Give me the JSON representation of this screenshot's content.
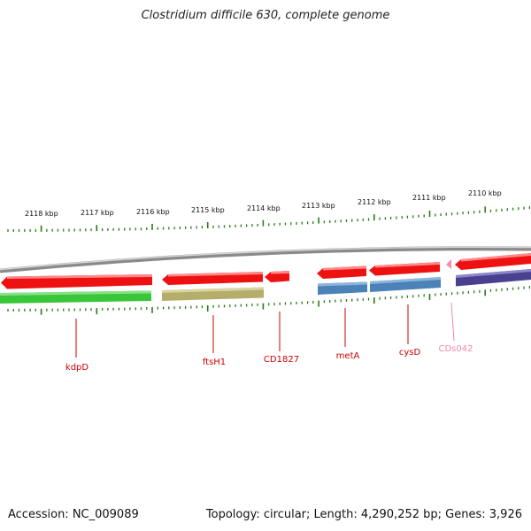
{
  "title": "Clostridium difficile 630, complete genome",
  "footer": {
    "accession": "Accession: NC_009089",
    "summary": "Topology: circular; Length: 4,290,252 bp; Genes: 3,926"
  },
  "ruler": {
    "labels": [
      "2118 kbp",
      "2117 kbp",
      "2116 kbp",
      "2115 kbp",
      "2114 kbp",
      "2113 kbp",
      "2112 kbp",
      "2111 kbp",
      "2110 kbp"
    ],
    "tick_color": "#2a7a18"
  },
  "genes": [
    {
      "label": "kdpD",
      "color": "#cc0000",
      "strand_top": "#ee1111",
      "strand_bottom": "#39c639"
    },
    {
      "label": "ftsH1",
      "color": "#cc0000",
      "strand_top": "#ee1111",
      "strand_bottom": "#b4ad6c"
    },
    {
      "label": "CD1827",
      "color": "#cc0000",
      "strand_top": "#ee1111"
    },
    {
      "label": "metA",
      "color": "#cc0000",
      "strand_top": "#ee1111",
      "strand_bottom": "#4b82b8"
    },
    {
      "label": "cysD",
      "color": "#cc0000",
      "strand_top": "#ee1111",
      "strand_bottom": "#4b82b8"
    },
    {
      "label": "CDs042",
      "color": "#ee88aa",
      "strand_top": "#ff88aa"
    },
    {
      "label": "",
      "color": "#cc0000",
      "strand_top": "#ee1111",
      "strand_bottom": "#4a4090"
    }
  ],
  "colors": {
    "backbone": "#8a8a8a",
    "label_red": "#cc0000",
    "label_pink": "#ee88aa"
  }
}
